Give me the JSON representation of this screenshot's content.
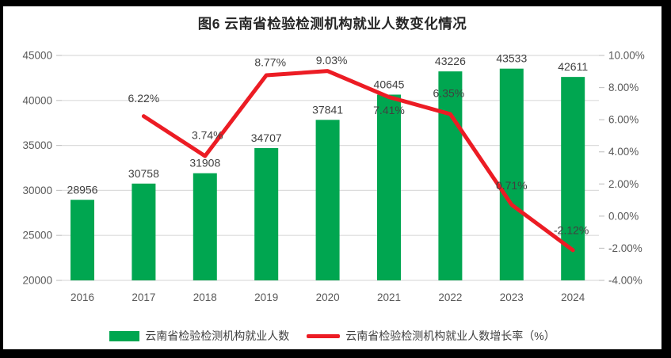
{
  "chart_data": {
    "type": "combo",
    "title": "图6  云南省检验检测机构就业人数变化情况",
    "categories": [
      "2016",
      "2017",
      "2018",
      "2019",
      "2020",
      "2021",
      "2022",
      "2023",
      "2024"
    ],
    "series": [
      {
        "name": "云南省检验检测机构就业人数",
        "type": "bar",
        "axis": "left",
        "values": [
          28956,
          30758,
          31908,
          34707,
          37841,
          40645,
          43226,
          43533,
          42611
        ],
        "labels": [
          "28956",
          "30758",
          "31908",
          "34707",
          "37841",
          "40645",
          "43226",
          "43533",
          "42611"
        ]
      },
      {
        "name": "云南省检验检测机构就业人数增长率（%）",
        "type": "line",
        "axis": "right",
        "values": [
          null,
          6.22,
          3.74,
          8.77,
          9.03,
          7.41,
          6.35,
          0.71,
          -2.12
        ],
        "labels": [
          null,
          "6.22%",
          "3.74%",
          "8.77%",
          "9.03%",
          "7.41%",
          "6.35%",
          "0.71%",
          "-2.12%"
        ]
      }
    ],
    "left_axis": {
      "min": 20000,
      "max": 45000,
      "step": 5000,
      "tick_labels": [
        "45000",
        "40000",
        "35000",
        "30000",
        "25000",
        "20000"
      ]
    },
    "right_axis": {
      "min": -4,
      "max": 10,
      "step": 2,
      "tick_labels": [
        "10.00%",
        "8.00%",
        "6.00%",
        "4.00%",
        "2.00%",
        "0.00%",
        "-2.00%",
        "-4.00%"
      ]
    },
    "grid": true,
    "legend_position": "bottom"
  },
  "colors": {
    "bar": "#00A650",
    "line": "#EC1C24",
    "grid": "#DCDCDC",
    "tick": "#C6C6C6",
    "axis_text": "#595959",
    "label_text": "#404040",
    "frame": "#000000",
    "background": "#FFFFFF"
  }
}
